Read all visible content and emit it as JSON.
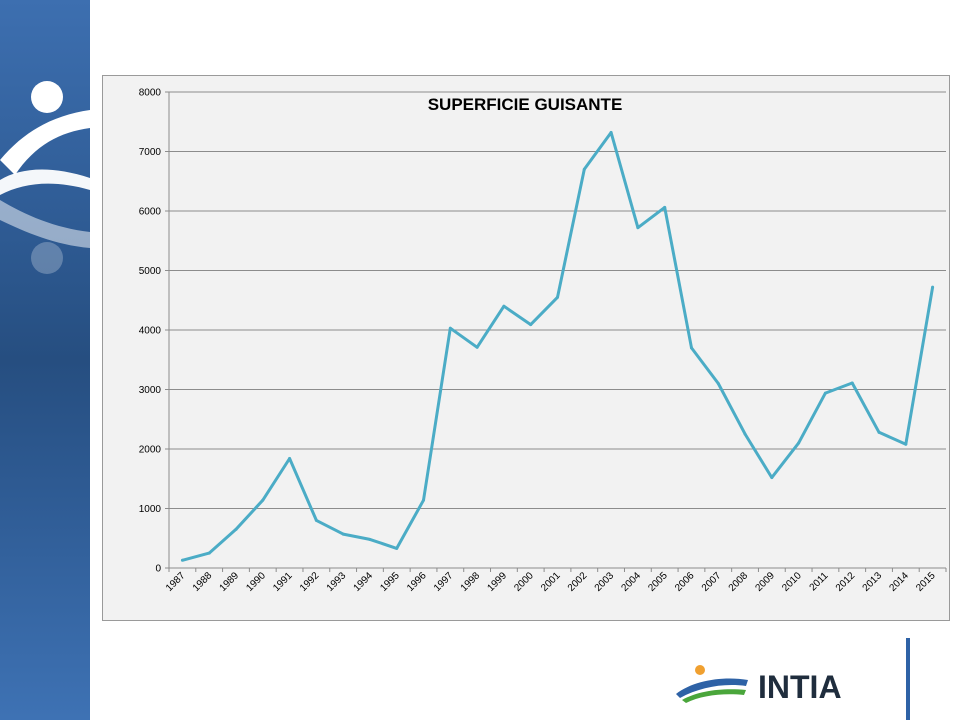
{
  "chart_data": {
    "type": "line",
    "title": "SUPERFICIE GUISANTE",
    "xlabel": "",
    "ylabel": "",
    "ylim": [
      0,
      8000
    ],
    "yticks": [
      "0",
      "1000",
      "2000",
      "3000",
      "4000",
      "5000",
      "6000",
      "7000",
      "8000"
    ],
    "grid": true,
    "categories": [
      "1987",
      "1988",
      "1989",
      "1990",
      "1991",
      "1992",
      "1993",
      "1994",
      "1995",
      "1996",
      "1997",
      "1998",
      "1999",
      "2000",
      "2001",
      "2002",
      "2003",
      "2004",
      "2005",
      "2006",
      "2007",
      "2008",
      "2009",
      "2010",
      "2011",
      "2012",
      "2013",
      "2014",
      "2015"
    ],
    "series": [
      {
        "color": "#4bacc6",
        "values": [
          130,
          250,
          650,
          1140,
          1840,
          800,
          570,
          480,
          330,
          1140,
          4030,
          3710,
          4400,
          4090,
          4550,
          6700,
          7320,
          5720,
          6060,
          3700,
          3100,
          2250,
          1520,
          2100,
          2940,
          3110,
          2280,
          2080,
          4720
        ]
      }
    ]
  },
  "logo": {
    "text": "INTIA"
  }
}
